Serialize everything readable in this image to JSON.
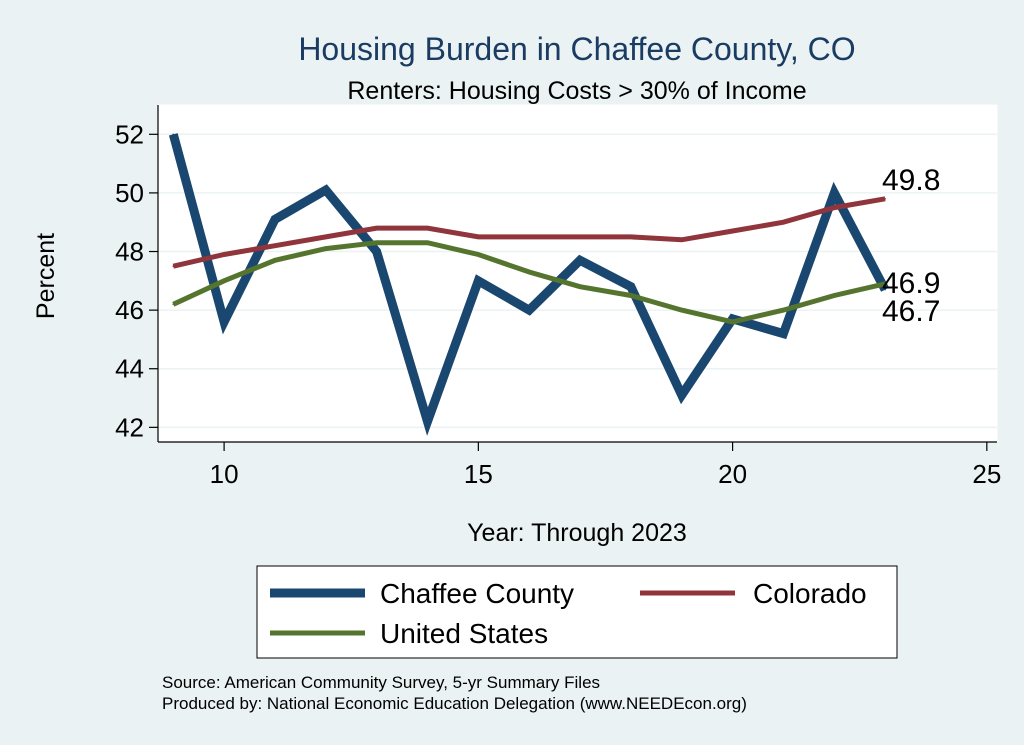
{
  "chart_data": {
    "type": "line",
    "title": "Housing Burden in Chaffee County, CO",
    "subtitle": "Renters: Housing Costs > 30% of Income",
    "xlabel": "Year: Through 2023",
    "ylabel": "Percent",
    "xlim": [
      8.7,
      25.2
    ],
    "ylim": [
      41.5,
      53
    ],
    "xticks": [
      10,
      15,
      20,
      25
    ],
    "yticks": [
      42,
      44,
      46,
      48,
      50,
      52
    ],
    "grid": true,
    "series": [
      {
        "name": "Chaffee County",
        "color": "#1a476f",
        "x": [
          9,
          10,
          11,
          12,
          13,
          14,
          15,
          16,
          17,
          18,
          19,
          20,
          21,
          22,
          23
        ],
        "values": [
          52.0,
          45.6,
          49.1,
          50.1,
          48.0,
          42.2,
          47.0,
          46.0,
          47.7,
          46.8,
          43.1,
          45.7,
          45.2,
          50.0,
          46.7
        ]
      },
      {
        "name": "Colorado",
        "color": "#90353b",
        "x": [
          9,
          10,
          11,
          12,
          13,
          14,
          15,
          16,
          17,
          18,
          19,
          20,
          21,
          22,
          23
        ],
        "values": [
          47.5,
          47.9,
          48.2,
          48.5,
          48.8,
          48.8,
          48.5,
          48.5,
          48.5,
          48.5,
          48.4,
          48.7,
          49.0,
          49.5,
          49.8
        ]
      },
      {
        "name": "United States",
        "color": "#55752f",
        "x": [
          9,
          10,
          11,
          12,
          13,
          14,
          15,
          16,
          17,
          18,
          19,
          20,
          21,
          22,
          23
        ],
        "values": [
          46.2,
          47.0,
          47.7,
          48.1,
          48.3,
          48.3,
          47.9,
          47.3,
          46.8,
          46.5,
          46.0,
          45.6,
          46.0,
          46.5,
          46.9
        ]
      }
    ],
    "end_labels": [
      "49.8",
      "46.9",
      "46.7"
    ],
    "legend": [
      "Chaffee County",
      "Colorado",
      "United States"
    ]
  },
  "source_note": "Source: American Community Survey, 5-yr Summary Files",
  "produced_note": "Produced by: National Economic Education Delegation (www.NEEDEcon.org)"
}
